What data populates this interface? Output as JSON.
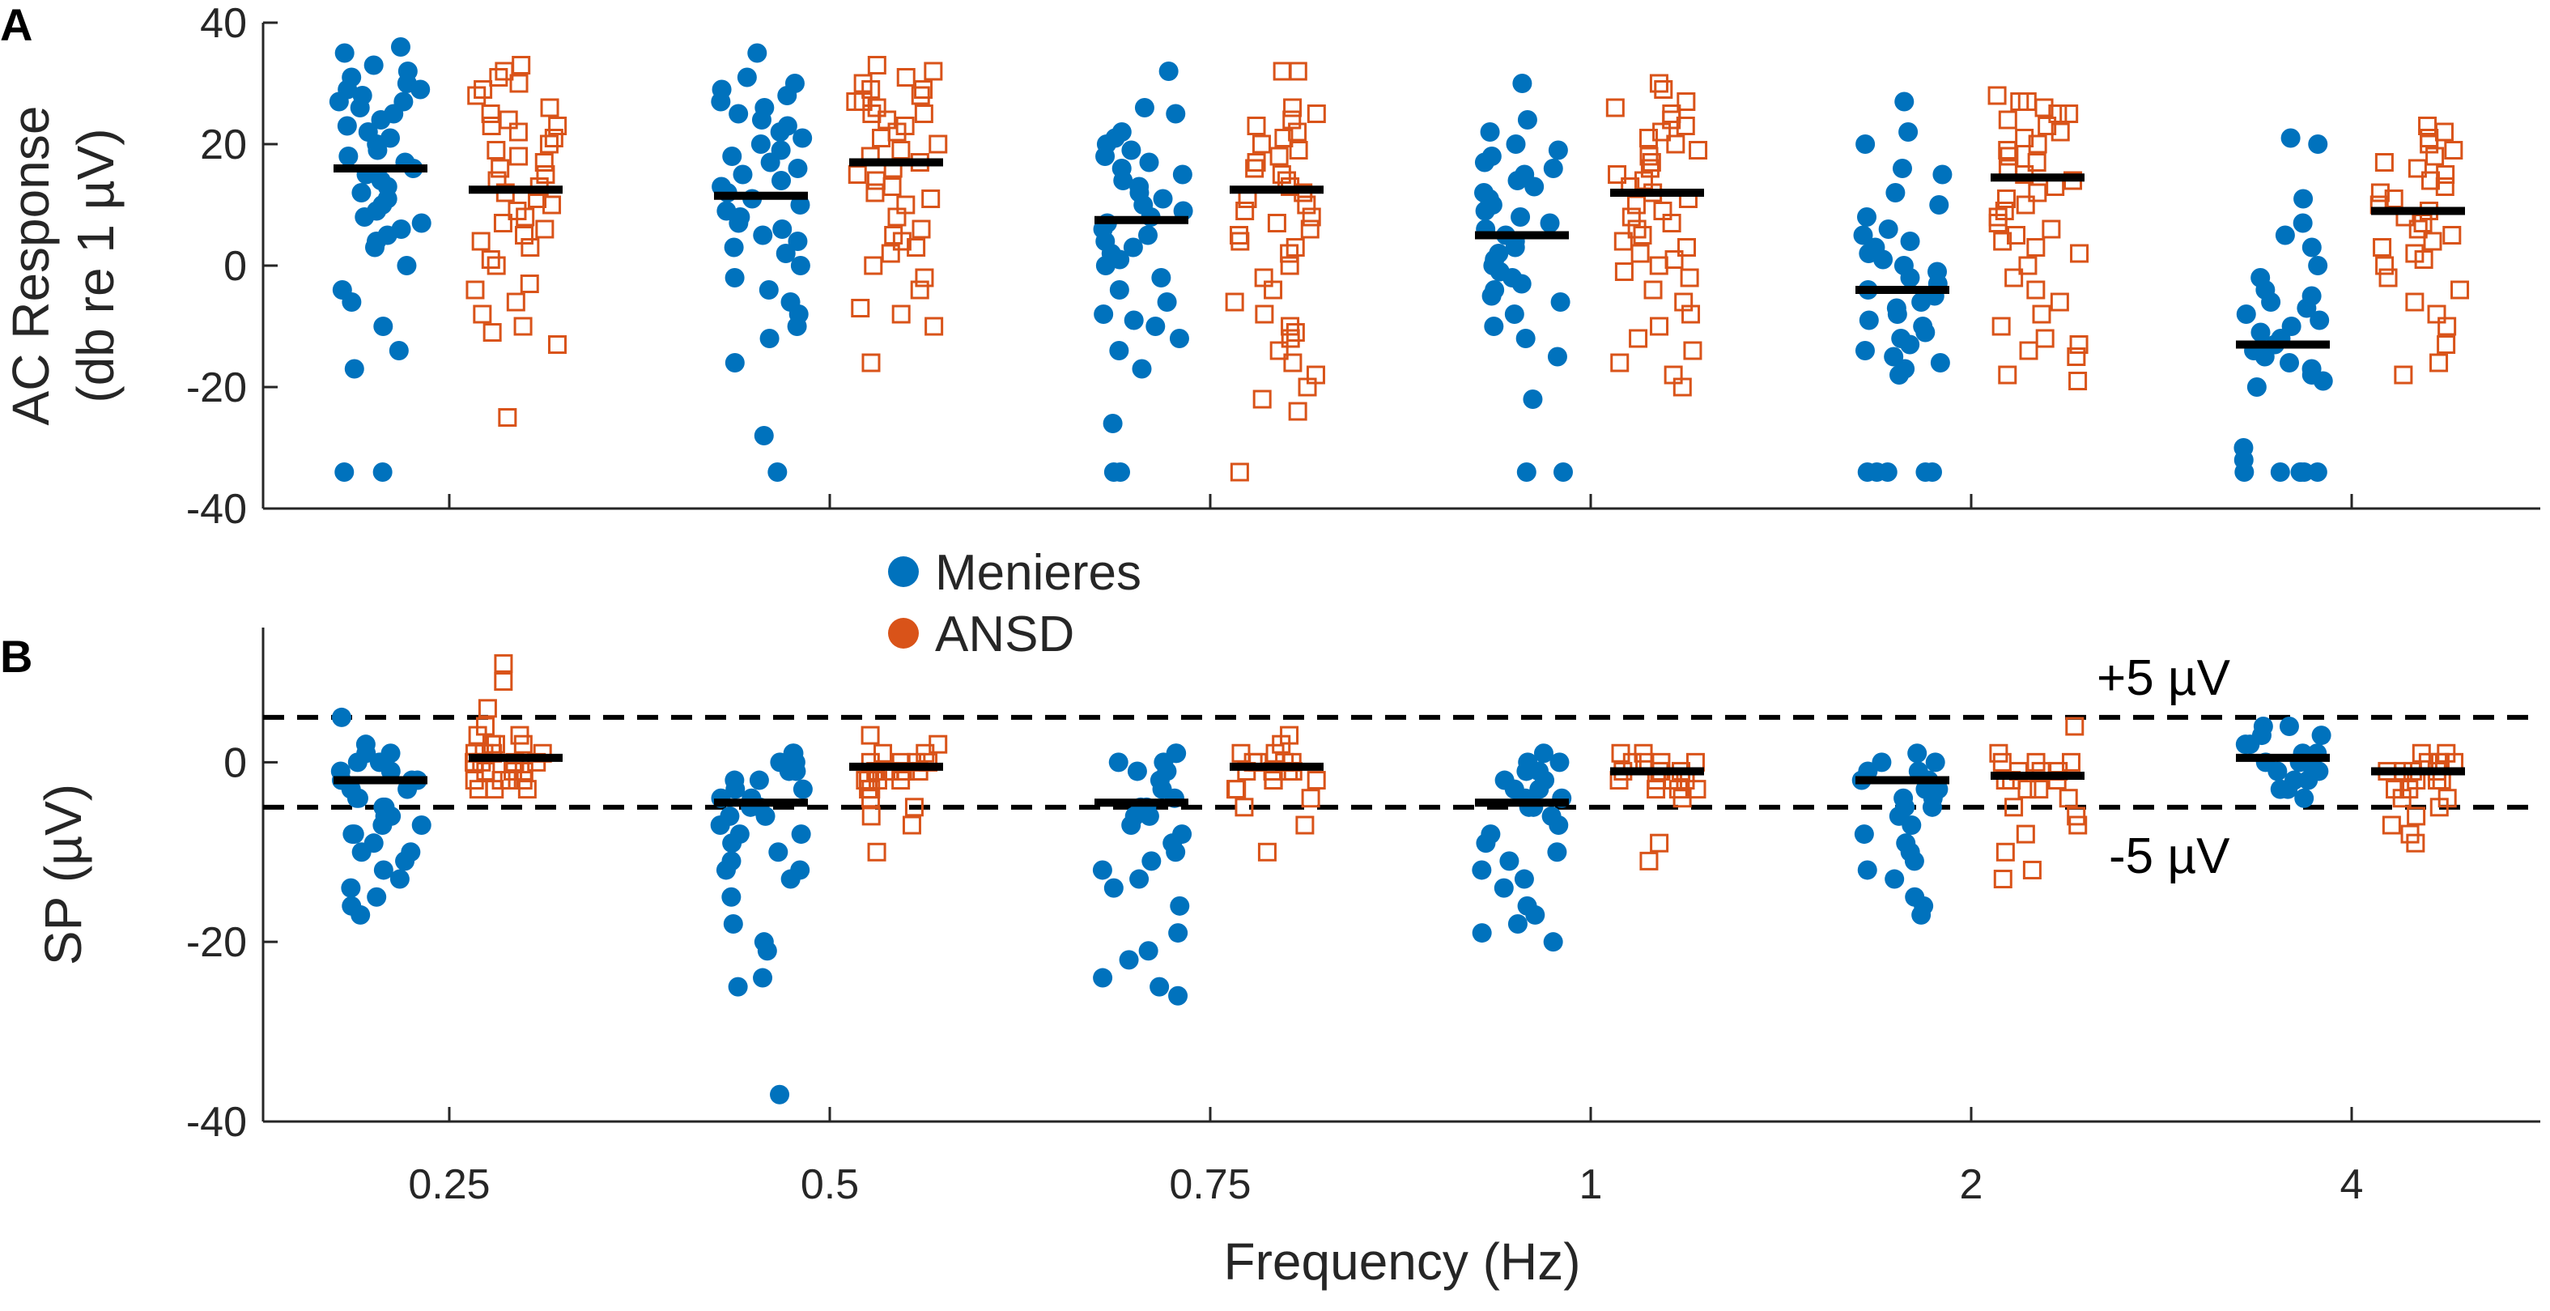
{
  "chart_data": {
    "type": "scatter",
    "x_label": "Frequency (Hz)",
    "categories": [
      "0.25",
      "0.5",
      "0.75",
      "1",
      "2",
      "4"
    ],
    "legend": [
      {
        "name": "Menieres",
        "marker": "filled-circle",
        "color": "#0072BD"
      },
      {
        "name": "ANSD",
        "marker": "open-square",
        "color": "#D95319"
      }
    ],
    "panels": [
      {
        "letter": "A",
        "y_label_line1": "AC Response",
        "y_label_line2": "(db re 1 µV)",
        "ylim": [
          -40,
          40
        ],
        "yticks": [
          "-40",
          "-20",
          "0",
          "20",
          "40"
        ],
        "ytick_values": [
          -40,
          -20,
          0,
          20,
          40
        ],
        "reference_lines": [],
        "groups": [
          {
            "category": "0.25",
            "series": "Menieres",
            "mean": 16,
            "values": [
              36,
              35,
              33,
              32,
              31,
              30,
              29,
              29,
              28,
              27,
              27,
              26,
              25,
              24,
              23,
              22,
              21,
              20,
              19,
              18,
              17,
              16,
              15,
              14,
              13,
              12,
              11,
              10,
              9,
              8,
              7,
              6,
              5,
              4,
              3,
              0,
              -4,
              -6,
              -10,
              -14,
              -17,
              -34,
              -34
            ]
          },
          {
            "category": "0.25",
            "series": "ANSD",
            "mean": 12.5,
            "values": [
              33,
              32,
              31,
              30,
              29,
              28,
              26,
              25,
              24,
              23,
              23,
              22,
              21,
              20,
              19,
              18,
              17,
              16,
              15,
              14,
              13,
              12,
              11,
              10,
              9,
              8,
              7,
              6,
              5,
              4,
              3,
              1,
              0,
              -3,
              -4,
              -6,
              -8,
              -10,
              -11,
              -13,
              -25
            ]
          },
          {
            "category": "0.5",
            "series": "Menieres",
            "mean": 11.5,
            "values": [
              35,
              31,
              30,
              29,
              28,
              27,
              26,
              25,
              24,
              23,
              22,
              21,
              20,
              19,
              18,
              17,
              16,
              15,
              14,
              13,
              12,
              11,
              10,
              9,
              8,
              7,
              6,
              5,
              4,
              3,
              2,
              0,
              -2,
              -4,
              -6,
              -8,
              -10,
              -12,
              -16,
              -28,
              -34
            ]
          },
          {
            "category": "0.5",
            "series": "ANSD",
            "mean": 17,
            "values": [
              33,
              32,
              31,
              30,
              29,
              29,
              28,
              27,
              27,
              26,
              25,
              25,
              24,
              23,
              22,
              21,
              20,
              19,
              18,
              17,
              16,
              15,
              14,
              13,
              12,
              11,
              10,
              8,
              6,
              5,
              4,
              3,
              2,
              0,
              -2,
              -4,
              -7,
              -8,
              -10,
              -16
            ]
          },
          {
            "category": "0.75",
            "series": "Menieres",
            "mean": 7.5,
            "values": [
              32,
              26,
              25,
              22,
              21,
              20,
              19,
              18,
              17,
              16,
              15,
              14,
              13,
              12,
              11,
              10,
              9,
              8,
              7,
              6,
              5,
              4,
              3,
              2,
              1,
              0,
              -2,
              -4,
              -6,
              -8,
              -9,
              -10,
              -12,
              -14,
              -17,
              -26,
              -34,
              -34
            ]
          },
          {
            "category": "0.75",
            "series": "ANSD",
            "mean": 12.5,
            "values": [
              32,
              32,
              26,
              25,
              24,
              23,
              22,
              21,
              20,
              19,
              18,
              17,
              16,
              15,
              14,
              13,
              12,
              11,
              10,
              9,
              8,
              7,
              6,
              5,
              4,
              3,
              2,
              0,
              -2,
              -4,
              -6,
              -8,
              -10,
              -11,
              -12,
              -14,
              -16,
              -18,
              -20,
              -22,
              -24,
              -34
            ]
          },
          {
            "category": "1",
            "series": "Menieres",
            "mean": 5,
            "values": [
              30,
              24,
              22,
              20,
              19,
              18,
              17,
              16,
              15,
              14,
              13,
              12,
              11,
              10,
              9,
              8,
              7,
              6,
              5,
              4,
              3,
              2,
              1,
              0,
              -1,
              -2,
              -3,
              -4,
              -5,
              -6,
              -8,
              -10,
              -12,
              -15,
              -22,
              -34,
              -34
            ]
          },
          {
            "category": "1",
            "series": "ANSD",
            "mean": 12,
            "values": [
              30,
              29,
              27,
              26,
              25,
              24,
              23,
              22,
              21,
              20,
              19,
              18,
              17,
              16,
              15,
              14,
              13,
              12,
              11,
              10,
              9,
              8,
              7,
              6,
              5,
              4,
              3,
              2,
              1,
              0,
              -1,
              -2,
              -4,
              -6,
              -8,
              -10,
              -12,
              -14,
              -16,
              -18,
              -20
            ]
          },
          {
            "category": "2",
            "series": "Menieres",
            "mean": -4,
            "values": [
              27,
              22,
              20,
              16,
              15,
              12,
              10,
              8,
              6,
              5,
              4,
              3,
              2,
              1,
              0,
              -1,
              -2,
              -3,
              -4,
              -5,
              -6,
              -7,
              -8,
              -9,
              -10,
              -11,
              -12,
              -13,
              -14,
              -15,
              -16,
              -17,
              -18,
              -34,
              -34,
              -34,
              -34,
              -34
            ]
          },
          {
            "category": "2",
            "series": "ANSD",
            "mean": 14.5,
            "values": [
              28,
              27,
              27,
              26,
              25,
              25,
              24,
              23,
              22,
              21,
              20,
              19,
              18,
              17,
              16,
              15,
              14,
              13,
              12,
              11,
              10,
              9,
              8,
              7,
              6,
              5,
              4,
              3,
              2,
              0,
              -2,
              -4,
              -6,
              -8,
              -10,
              -12,
              -13,
              -14,
              -15,
              -18,
              -19
            ]
          },
          {
            "category": "4",
            "series": "Menieres",
            "mean": -13,
            "values": [
              21,
              20,
              11,
              7,
              5,
              3,
              0,
              -2,
              -4,
              -5,
              -6,
              -7,
              -8,
              -9,
              -10,
              -11,
              -12,
              -13,
              -14,
              -15,
              -16,
              -17,
              -18,
              -19,
              -20,
              -30,
              -32,
              -34,
              -34,
              -34,
              -34,
              -34,
              -34
            ]
          },
          {
            "category": "4",
            "series": "ANSD",
            "mean": 9,
            "values": [
              23,
              22,
              21,
              20,
              19,
              18,
              17,
              16,
              15,
              14,
              13,
              12,
              11,
              10,
              9,
              8,
              7,
              6,
              5,
              4,
              3,
              2,
              1,
              0,
              -2,
              -4,
              -6,
              -8,
              -10,
              -13,
              -16,
              -18
            ]
          }
        ]
      },
      {
        "letter": "B",
        "y_label_line1": "SP (µV)",
        "y_label_line2": "",
        "ylim": [
          -40,
          15
        ],
        "yticks": [
          "-40",
          "-20",
          "0"
        ],
        "ytick_values": [
          -40,
          -20,
          0
        ],
        "reference_lines": [
          {
            "value": 5,
            "label": "+5 µV"
          },
          {
            "value": -5,
            "label": "-5 µV"
          }
        ],
        "groups": [
          {
            "category": "0.25",
            "series": "Menieres",
            "mean": -2,
            "values": [
              5,
              2,
              1,
              1,
              0,
              0,
              -1,
              -1,
              -2,
              -2,
              -2,
              -3,
              -3,
              -4,
              -4,
              -5,
              -5,
              -6,
              -6,
              -7,
              -7,
              -8,
              -8,
              -9,
              -10,
              -10,
              -11,
              -12,
              -13,
              -14,
              -15,
              -16,
              -17
            ]
          },
          {
            "category": "0.25",
            "series": "ANSD",
            "mean": 0.5,
            "values": [
              11,
              9,
              6,
              4,
              3,
              3,
              2,
              2,
              1,
              1,
              1,
              0,
              0,
              0,
              -1,
              -1,
              -1,
              -2,
              -2,
              -2,
              -2,
              -3,
              -3,
              -3,
              0,
              1,
              2,
              0
            ]
          },
          {
            "category": "0.5",
            "series": "Menieres",
            "mean": -4.5,
            "values": [
              1,
              1,
              0,
              0,
              -1,
              -1,
              -2,
              -2,
              -3,
              -3,
              -4,
              -4,
              -5,
              -5,
              -6,
              -6,
              -7,
              -8,
              -8,
              -9,
              -10,
              -11,
              -12,
              -12,
              -13,
              -15,
              -18,
              -20,
              -21,
              -24,
              -25,
              -37
            ]
          },
          {
            "category": "0.5",
            "series": "ANSD",
            "mean": -0.5,
            "values": [
              3,
              2,
              1,
              1,
              0,
              0,
              0,
              -1,
              -1,
              -1,
              -1,
              -2,
              -2,
              -2,
              -3,
              -3,
              -4,
              -5,
              -6,
              -7,
              -10,
              0,
              -1,
              -2
            ]
          },
          {
            "category": "0.75",
            "series": "Menieres",
            "mean": -4.5,
            "values": [
              1,
              1,
              0,
              0,
              -1,
              -1,
              -2,
              -3,
              -4,
              -5,
              -5,
              -6,
              -6,
              -7,
              -8,
              -9,
              -10,
              -11,
              -12,
              -13,
              -14,
              -16,
              -19,
              -21,
              -22,
              -24,
              -25,
              -26
            ]
          },
          {
            "category": "0.75",
            "series": "ANSD",
            "mean": -0.5,
            "values": [
              3,
              2,
              1,
              1,
              0,
              0,
              0,
              -1,
              -1,
              -1,
              -2,
              -2,
              -2,
              -3,
              -3,
              -4,
              -5,
              -7,
              -10,
              0,
              -1
            ]
          },
          {
            "category": "1",
            "series": "Menieres",
            "mean": -4.5,
            "values": [
              1,
              0,
              0,
              -1,
              -1,
              -2,
              -2,
              -3,
              -3,
              -4,
              -4,
              -5,
              -5,
              -6,
              -7,
              -8,
              -9,
              -10,
              -11,
              -12,
              -13,
              -14,
              -16,
              -17,
              -18,
              -19,
              -20
            ]
          },
          {
            "category": "1",
            "series": "ANSD",
            "mean": -1,
            "values": [
              1,
              1,
              0,
              0,
              0,
              -1,
              -1,
              -1,
              -2,
              -2,
              -2,
              -3,
              -3,
              -3,
              -4,
              -9,
              -11,
              0,
              -1,
              -2
            ]
          },
          {
            "category": "2",
            "series": "Menieres",
            "mean": -2,
            "values": [
              1,
              0,
              0,
              -1,
              -1,
              -2,
              -2,
              -3,
              -3,
              -4,
              -4,
              -5,
              -5,
              -6,
              -7,
              -8,
              -9,
              -10,
              -11,
              -12,
              -13,
              -15,
              -16,
              -17
            ]
          },
          {
            "category": "2",
            "series": "ANSD",
            "mean": -1.5,
            "values": [
              4,
              1,
              0,
              0,
              -1,
              -1,
              -2,
              -2,
              -3,
              -3,
              -4,
              -5,
              -6,
              -7,
              -8,
              -10,
              -12,
              -13,
              0,
              -1,
              -2
            ]
          },
          {
            "category": "4",
            "series": "Menieres",
            "mean": 0.5,
            "values": [
              4,
              4,
              3,
              3,
              2,
              2,
              1,
              1,
              0,
              0,
              0,
              -1,
              -1,
              -2,
              -2,
              -3,
              -3,
              -4
            ]
          },
          {
            "category": "4",
            "series": "ANSD",
            "mean": -1,
            "values": [
              1,
              1,
              0,
              0,
              0,
              -1,
              -1,
              -1,
              -2,
              -2,
              -2,
              -3,
              -3,
              -4,
              -4,
              -5,
              -6,
              -7,
              -8,
              -9,
              0,
              -1
            ]
          }
        ]
      }
    ]
  }
}
